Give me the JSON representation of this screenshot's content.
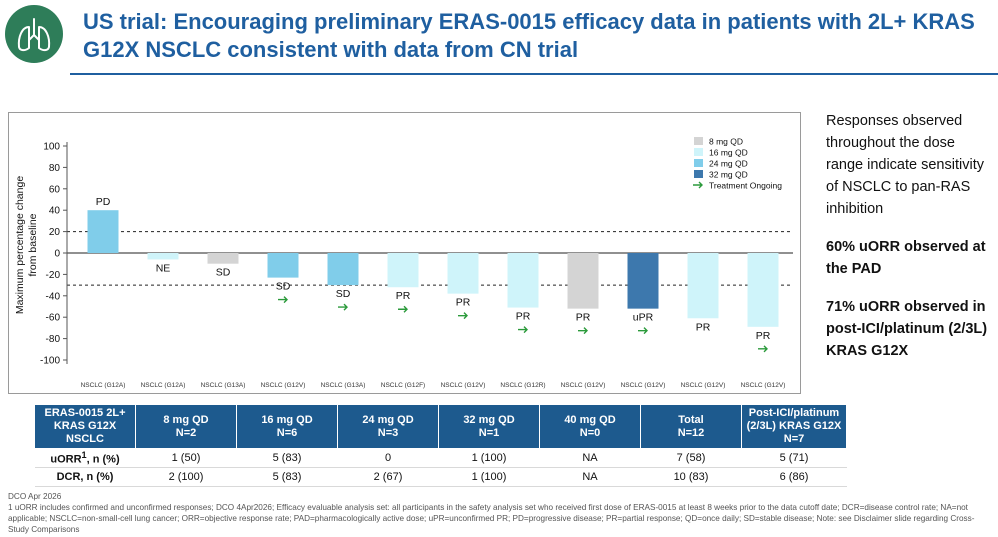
{
  "header": {
    "title": "US trial: Encouraging preliminary ERAS-0015 efficacy data in patients with 2L+ KRAS G12X NSCLC consistent with data from CN trial",
    "logo_icon": "lungs-icon",
    "accent_color": "#1f5fa0",
    "logo_color": "#2e7d59"
  },
  "chart_data": {
    "type": "bar",
    "ylabel": "Maximum percentage change from baseline",
    "ylim": [
      -120,
      120
    ],
    "yticks": [
      100,
      80,
      60,
      40,
      20,
      0,
      -20,
      -40,
      -60,
      -80,
      -100
    ],
    "reference_lines": [
      20,
      -30
    ],
    "legend_position": "top-right",
    "legend": [
      {
        "label": "8 mg QD",
        "color": "#d4d4d4"
      },
      {
        "label": "16 mg QD",
        "color": "#cff4fa"
      },
      {
        "label": "24 mg QD",
        "color": "#80cdea"
      },
      {
        "label": "32 mg QD",
        "color": "#3d78ad"
      },
      {
        "label": "Treatment Ongoing",
        "symbol": "arrow",
        "color": "#2b9a3b"
      }
    ],
    "bars": [
      {
        "category": "NSCLC (G12A)",
        "value": 40,
        "label": "PD",
        "dose": "24 mg QD",
        "ongoing": false
      },
      {
        "category": "NSCLC (G12A)",
        "value": -6,
        "label": "NE",
        "dose": "16 mg QD",
        "ongoing": false
      },
      {
        "category": "NSCLC (G13A)",
        "value": -10,
        "label": "SD",
        "dose": "8 mg QD",
        "ongoing": false
      },
      {
        "category": "NSCLC (G12V)",
        "value": -23,
        "label": "SD",
        "dose": "24 mg QD",
        "ongoing": true
      },
      {
        "category": "NSCLC (G13A)",
        "value": -30,
        "label": "SD",
        "dose": "24 mg QD",
        "ongoing": true
      },
      {
        "category": "NSCLC (G12F)",
        "value": -32,
        "label": "PR",
        "dose": "16 mg QD",
        "ongoing": true
      },
      {
        "category": "NSCLC (G12V)",
        "value": -38,
        "label": "PR",
        "dose": "16 mg QD",
        "ongoing": true
      },
      {
        "category": "NSCLC (G12R)",
        "value": -51,
        "label": "PR",
        "dose": "16 mg QD",
        "ongoing": true
      },
      {
        "category": "NSCLC (G12V)",
        "value": -52,
        "label": "PR",
        "dose": "8 mg QD",
        "ongoing": true
      },
      {
        "category": "NSCLC (G12V)",
        "value": -52,
        "label": "uPR",
        "dose": "32 mg QD",
        "ongoing": true
      },
      {
        "category": "NSCLC (G12V)",
        "value": -61,
        "label": "PR",
        "dose": "16 mg QD",
        "ongoing": false
      },
      {
        "category": "NSCLC (G12V)",
        "value": -69,
        "label": "PR",
        "dose": "16 mg QD",
        "ongoing": true
      }
    ]
  },
  "side_text": {
    "p1": "Responses observed throughout the dose range indicate sensitivity of NSCLC to pan-RAS inhibition",
    "p2": "60% uORR observed at the PAD",
    "p3": "71% uORR observed in post-ICI/platinum (2/3L) KRAS G12X"
  },
  "table": {
    "header_color": "#1d5a8e",
    "columns": [
      {
        "l1": "ERAS-0015  2L+",
        "l2": "KRAS G12X",
        "l3": "NSCLC"
      },
      {
        "l1": "8 mg QD",
        "l2": "N=2",
        "l3": ""
      },
      {
        "l1": "16 mg QD",
        "l2": "N=6",
        "l3": ""
      },
      {
        "l1": "24 mg QD",
        "l2": "N=3",
        "l3": ""
      },
      {
        "l1": "32 mg QD",
        "l2": "N=1",
        "l3": ""
      },
      {
        "l1": "40 mg QD",
        "l2": "N=0",
        "l3": ""
      },
      {
        "l1": "Total",
        "l2": "N=12",
        "l3": ""
      },
      {
        "l1": "Post-ICI/platinum",
        "l2": "(2/3L) KRAS G12X",
        "l3": "N=7"
      }
    ],
    "row1": {
      "label": "uORR",
      "sup": "1",
      "label_tail": ", n (%)",
      "cells": [
        "1 (50)",
        "5 (83)",
        "0",
        "1 (100)",
        "NA",
        "7 (58)",
        "5 (71)"
      ]
    },
    "row2": {
      "label": "DCR, n (%)",
      "cells": [
        "2 (100)",
        "5 (83)",
        "2 (67)",
        "1 (100)",
        "NA",
        "10 (83)",
        "6 (86)"
      ]
    }
  },
  "footnote": {
    "line1": "DCO Apr 2026",
    "line2": "1 uORR includes confirmed and unconfirmed responses; DCO 4Apr2026; Efficacy evaluable analysis set: all participants in the safety analysis set who received first dose of ERAS-0015 at least 8 weeks prior to the data cutoff date; DCR=disease control rate; NA=not applicable; NSCLC=non-small-cell lung cancer; ORR=objective response rate; PAD=pharmacologically active dose; uPR=unconfirmed PR; PD=progressive disease; PR=partial response; QD=once daily; SD=stable disease; Note: see Disclaimer slide regarding Cross-Study Comparisons"
  }
}
